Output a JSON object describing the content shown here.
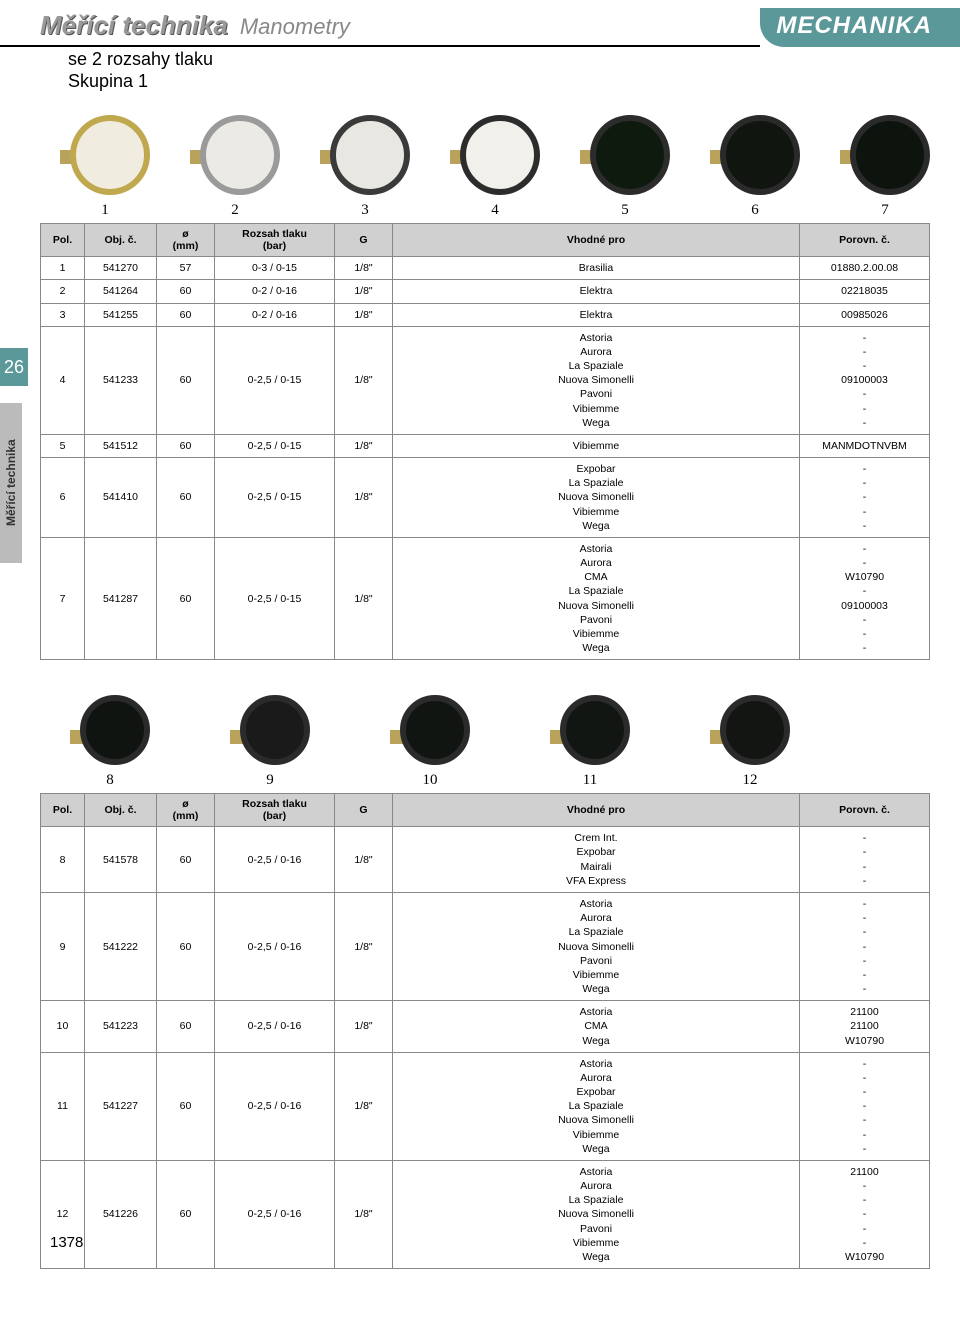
{
  "header": {
    "title": "Měřící technika",
    "subtitle": "Manometry",
    "brand": "MECHANIKA"
  },
  "subheading_line1": "se 2 rozsahy tlaku",
  "subheading_line2": "Skupina 1",
  "side_page": "26",
  "side_label": "Měřící technika",
  "page_number": "1378",
  "table1": {
    "headers": [
      "Pol.",
      "Obj. č.",
      "ø\n(mm)",
      "Rozsah tlaku\n(bar)",
      "G",
      "Vhodné pro",
      "Porovn. č."
    ],
    "rows": [
      {
        "pol": "1",
        "obj": "541270",
        "mm": "57",
        "rozsah": "0-3 / 0-15",
        "g": "1/8\"",
        "vhodne": "Brasilia",
        "porovn": "01880.2.00.08"
      },
      {
        "pol": "2",
        "obj": "541264",
        "mm": "60",
        "rozsah": "0-2 / 0-16",
        "g": "1/8\"",
        "vhodne": "Elektra",
        "porovn": "02218035"
      },
      {
        "pol": "3",
        "obj": "541255",
        "mm": "60",
        "rozsah": "0-2 / 0-16",
        "g": "1/8\"",
        "vhodne": "Elektra",
        "porovn": "00985026"
      },
      {
        "pol": "4",
        "obj": "541233",
        "mm": "60",
        "rozsah": "0-2,5 / 0-15",
        "g": "1/8\"",
        "vhodne": "Astoria\nAurora\nLa Spaziale\nNuova Simonelli\nPavoni\nVibiemme\nWega",
        "porovn": "-\n-\n-\n09100003\n-\n-\n-"
      },
      {
        "pol": "5",
        "obj": "541512",
        "mm": "60",
        "rozsah": "0-2,5 / 0-15",
        "g": "1/8\"",
        "vhodne": "Vibiemme",
        "porovn": "MANMDOTNVBM"
      },
      {
        "pol": "6",
        "obj": "541410",
        "mm": "60",
        "rozsah": "0-2,5 / 0-15",
        "g": "1/8\"",
        "vhodne": "Expobar\nLa Spaziale\nNuova Simonelli\nVibiemme\nWega",
        "porovn": "-\n-\n-\n-\n-"
      },
      {
        "pol": "7",
        "obj": "541287",
        "mm": "60",
        "rozsah": "0-2,5 / 0-15",
        "g": "1/8\"",
        "vhodne": "Astoria\nAurora\nCMA\nLa Spaziale\nNuova Simonelli\nPavoni\nVibiemme\nWega",
        "porovn": "-\n-\nW10790\n-\n09100003\n-\n-\n-"
      }
    ]
  },
  "gauges1": [
    {
      "num": "1",
      "ring": "#bfa84d",
      "face": "#f0ece0"
    },
    {
      "num": "2",
      "ring": "#9a9a9a",
      "face": "#eceae4"
    },
    {
      "num": "3",
      "ring": "#3a3a3a",
      "face": "#e9e7e2"
    },
    {
      "num": "4",
      "ring": "#2c2c2c",
      "face": "#f2f0eb"
    },
    {
      "num": "5",
      "ring": "#2c2c2c",
      "face": "#0f1a0f"
    },
    {
      "num": "6",
      "ring": "#2a2a2a",
      "face": "#10160f"
    },
    {
      "num": "7",
      "ring": "#2a2a2a",
      "face": "#0d130d"
    }
  ],
  "table2": {
    "headers": [
      "Pol.",
      "Obj. č.",
      "ø\n(mm)",
      "Rozsah tlaku\n(bar)",
      "G",
      "Vhodné pro",
      "Porovn. č."
    ],
    "rows": [
      {
        "pol": "8",
        "obj": "541578",
        "mm": "60",
        "rozsah": "0-2,5 / 0-16",
        "g": "1/8\"",
        "vhodne": "Crem Int.\nExpobar\nMairali\nVFA Express",
        "porovn": "-\n-\n-\n-"
      },
      {
        "pol": "9",
        "obj": "541222",
        "mm": "60",
        "rozsah": "0-2,5 / 0-16",
        "g": "1/8\"",
        "vhodne": "Astoria\nAurora\nLa Spaziale\nNuova Simonelli\nPavoni\nVibiemme\nWega",
        "porovn": "-\n-\n-\n-\n-\n-\n-"
      },
      {
        "pol": "10",
        "obj": "541223",
        "mm": "60",
        "rozsah": "0-2,5 / 0-16",
        "g": "1/8\"",
        "vhodne": "Astoria\nCMA\nWega",
        "porovn": "21100\n21100\nW10790"
      },
      {
        "pol": "11",
        "obj": "541227",
        "mm": "60",
        "rozsah": "0-2,5 / 0-16",
        "g": "1/8\"",
        "vhodne": "Astoria\nAurora\nExpobar\nLa Spaziale\nNuova Simonelli\nVibiemme\nWega",
        "porovn": "-\n-\n-\n-\n-\n-\n-"
      },
      {
        "pol": "12",
        "obj": "541226",
        "mm": "60",
        "rozsah": "0-2,5 / 0-16",
        "g": "1/8\"",
        "vhodne": "Astoria\nAurora\nLa Spaziale\nNuova Simonelli\nPavoni\nVibiemme\nWega",
        "porovn": "21100\n-\n-\n-\n-\n-\nW10790"
      }
    ]
  },
  "gauges2": [
    {
      "num": "8",
      "ring": "#2a2a2a",
      "face": "#101410"
    },
    {
      "num": "9",
      "ring": "#2b2b2b",
      "face": "#1a1a1a"
    },
    {
      "num": "10",
      "ring": "#2b2b2b",
      "face": "#111511"
    },
    {
      "num": "11",
      "ring": "#2b2b2b",
      "face": "#121612"
    },
    {
      "num": "12",
      "ring": "#2b2b2b",
      "face": "#131513"
    }
  ],
  "colwidths": [
    "44px",
    "72px",
    "58px",
    "120px",
    "58px",
    "auto",
    "130px"
  ]
}
